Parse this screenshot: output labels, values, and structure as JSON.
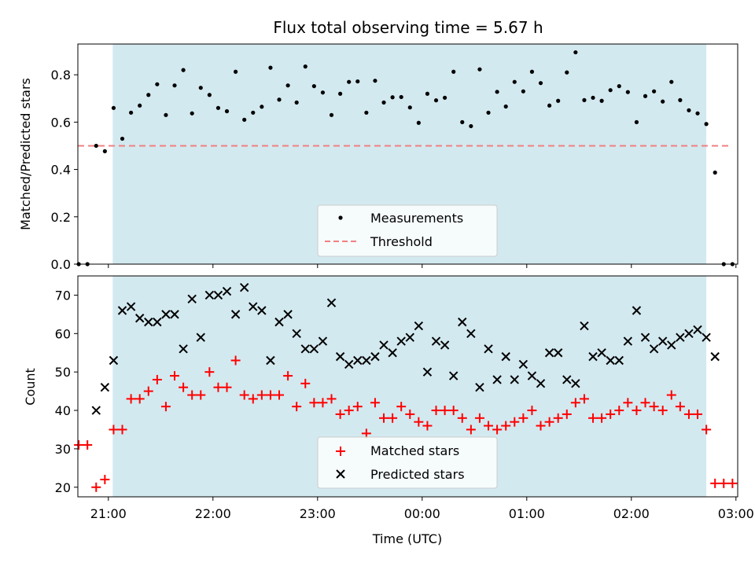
{
  "chart_data": [
    {
      "panel": "top",
      "type": "scatter",
      "title": "Flux total observing time = 5.67 h",
      "ylabel": "Matched/Predicted stars",
      "xlabel": "",
      "ylim": [
        0,
        0.93
      ],
      "yticks": [
        "0.0",
        "0.2",
        "0.4",
        "0.6",
        "0.8"
      ],
      "xlim": [
        -17.5,
        361
      ],
      "xticks": [
        0,
        60,
        120,
        180,
        240,
        300,
        360
      ],
      "shaded_span": [
        2.5,
        343
      ],
      "shade_color": "#d3e9f0",
      "threshold": 0.5,
      "threshold_range": [
        -17.5,
        357
      ],
      "legend": {
        "position": "lower center",
        "entries": [
          "Measurements",
          "Threshold"
        ]
      },
      "series": [
        {
          "name": "Measurements",
          "color": "#000000",
          "marker": "dot",
          "points": [
            [
              -17,
              0
            ],
            [
              -12,
              0
            ],
            [
              -7,
              0.5
            ],
            [
              -2,
              0.477
            ],
            [
              3,
              0.66
            ],
            [
              8,
              0.53
            ],
            [
              13,
              0.64
            ],
            [
              18,
              0.67
            ],
            [
              23,
              0.715
            ],
            [
              28,
              0.76
            ],
            [
              33,
              0.63
            ],
            [
              38,
              0.755
            ],
            [
              43,
              0.82
            ],
            [
              48,
              0.637
            ],
            [
              53,
              0.745
            ],
            [
              58,
              0.715
            ],
            [
              63,
              0.66
            ],
            [
              68,
              0.646
            ],
            [
              73,
              0.813
            ],
            [
              78,
              0.61
            ],
            [
              83,
              0.64
            ],
            [
              88,
              0.665
            ],
            [
              93,
              0.83
            ],
            [
              98,
              0.695
            ],
            [
              103,
              0.755
            ],
            [
              108,
              0.683
            ],
            [
              113,
              0.835
            ],
            [
              118,
              0.752
            ],
            [
              123,
              0.725
            ],
            [
              128,
              0.63
            ],
            [
              133,
              0.72
            ],
            [
              138,
              0.77
            ],
            [
              143,
              0.772
            ],
            [
              148,
              0.64
            ],
            [
              153,
              0.775
            ],
            [
              158,
              0.683
            ],
            [
              163,
              0.705
            ],
            [
              168,
              0.706
            ],
            [
              173,
              0.662
            ],
            [
              178,
              0.597
            ],
            [
              183,
              0.72
            ],
            [
              188,
              0.692
            ],
            [
              193,
              0.703
            ],
            [
              198,
              0.813
            ],
            [
              203,
              0.6
            ],
            [
              208,
              0.583
            ],
            [
              213,
              0.823
            ],
            [
              218,
              0.64
            ],
            [
              223,
              0.728
            ],
            [
              228,
              0.666
            ],
            [
              233,
              0.77
            ],
            [
              238,
              0.73
            ],
            [
              243,
              0.813
            ],
            [
              248,
              0.765
            ],
            [
              253,
              0.67
            ],
            [
              258,
              0.69
            ],
            [
              263,
              0.81
            ],
            [
              268,
              0.895
            ],
            [
              273,
              0.693
            ],
            [
              278,
              0.703
            ],
            [
              283,
              0.69
            ],
            [
              288,
              0.735
            ],
            [
              293,
              0.752
            ],
            [
              298,
              0.727
            ],
            [
              303,
              0.6
            ],
            [
              308,
              0.71
            ],
            [
              313,
              0.73
            ],
            [
              318,
              0.687
            ],
            [
              323,
              0.77
            ],
            [
              328,
              0.693
            ],
            [
              333,
              0.65
            ],
            [
              338,
              0.637
            ],
            [
              343,
              0.592
            ],
            [
              348,
              0.387
            ],
            [
              353,
              0
            ],
            [
              358,
              0
            ]
          ]
        },
        {
          "name": "Threshold",
          "color": "#f08080",
          "style": "dashed"
        }
      ]
    },
    {
      "panel": "bottom",
      "type": "scatter",
      "xlabel": "Time (UTC)",
      "ylabel": "Count",
      "ylim": [
        17.5,
        75
      ],
      "yticks": [
        "20",
        "30",
        "40",
        "50",
        "60",
        "70"
      ],
      "xlim": [
        -17.5,
        361
      ],
      "xtick_labels": [
        "21:00",
        "22:00",
        "23:00",
        "00:00",
        "01:00",
        "02:00",
        "03:00"
      ],
      "shaded_span": [
        2.5,
        343
      ],
      "shade_color": "#d3e9f0",
      "legend": {
        "position": "lower center",
        "entries": [
          "Matched stars",
          "Predicted stars"
        ]
      },
      "series": [
        {
          "name": "Matched stars",
          "color": "#ff0000",
          "marker": "plus",
          "points": [
            [
              -17,
              31
            ],
            [
              -12,
              31
            ],
            [
              -7,
              20
            ],
            [
              -2,
              22
            ],
            [
              3,
              35
            ],
            [
              8,
              35
            ],
            [
              13,
              43
            ],
            [
              18,
              43
            ],
            [
              23,
              45
            ],
            [
              28,
              48
            ],
            [
              33,
              41
            ],
            [
              38,
              49
            ],
            [
              43,
              46
            ],
            [
              48,
              44
            ],
            [
              53,
              44
            ],
            [
              58,
              50
            ],
            [
              63,
              46
            ],
            [
              68,
              46
            ],
            [
              73,
              53
            ],
            [
              78,
              44
            ],
            [
              83,
              43
            ],
            [
              88,
              44
            ],
            [
              93,
              44
            ],
            [
              98,
              44
            ],
            [
              103,
              49
            ],
            [
              108,
              41
            ],
            [
              113,
              47
            ],
            [
              118,
              42
            ],
            [
              123,
              42
            ],
            [
              128,
              43
            ],
            [
              133,
              39
            ],
            [
              138,
              40
            ],
            [
              143,
              41
            ],
            [
              148,
              34
            ],
            [
              153,
              42
            ],
            [
              158,
              38
            ],
            [
              163,
              38
            ],
            [
              168,
              41
            ],
            [
              173,
              39
            ],
            [
              178,
              37
            ],
            [
              183,
              36
            ],
            [
              188,
              40
            ],
            [
              193,
              40
            ],
            [
              198,
              40
            ],
            [
              203,
              38
            ],
            [
              208,
              35
            ],
            [
              213,
              38
            ],
            [
              218,
              36
            ],
            [
              223,
              35
            ],
            [
              228,
              36
            ],
            [
              233,
              37
            ],
            [
              238,
              38
            ],
            [
              243,
              40
            ],
            [
              248,
              36
            ],
            [
              253,
              37
            ],
            [
              258,
              38
            ],
            [
              263,
              39
            ],
            [
              268,
              42
            ],
            [
              273,
              43
            ],
            [
              278,
              38
            ],
            [
              283,
              38
            ],
            [
              288,
              39
            ],
            [
              293,
              40
            ],
            [
              298,
              42
            ],
            [
              303,
              40
            ],
            [
              308,
              42
            ],
            [
              313,
              41
            ],
            [
              318,
              40
            ],
            [
              323,
              44
            ],
            [
              328,
              41
            ],
            [
              333,
              39
            ],
            [
              338,
              39
            ],
            [
              343,
              35
            ],
            [
              348,
              21
            ],
            [
              353,
              21
            ],
            [
              358,
              21
            ]
          ]
        },
        {
          "name": "Predicted stars",
          "color": "#000000",
          "marker": "x",
          "points": [
            [
              -2,
              46
            ],
            [
              -7,
              40
            ],
            [
              3,
              53
            ],
            [
              8,
              66
            ],
            [
              13,
              67
            ],
            [
              18,
              64
            ],
            [
              23,
              63
            ],
            [
              28,
              63
            ],
            [
              33,
              65
            ],
            [
              38,
              65
            ],
            [
              43,
              56
            ],
            [
              48,
              69
            ],
            [
              53,
              59
            ],
            [
              58,
              70
            ],
            [
              63,
              70
            ],
            [
              68,
              71
            ],
            [
              73,
              65
            ],
            [
              78,
              72
            ],
            [
              83,
              67
            ],
            [
              88,
              66
            ],
            [
              93,
              53
            ],
            [
              98,
              63
            ],
            [
              103,
              65
            ],
            [
              108,
              60
            ],
            [
              113,
              56
            ],
            [
              118,
              56
            ],
            [
              123,
              58
            ],
            [
              128,
              68
            ],
            [
              133,
              54
            ],
            [
              138,
              52
            ],
            [
              143,
              53
            ],
            [
              148,
              53
            ],
            [
              153,
              54
            ],
            [
              158,
              57
            ],
            [
              163,
              55
            ],
            [
              168,
              58
            ],
            [
              173,
              59
            ],
            [
              178,
              62
            ],
            [
              183,
              50
            ],
            [
              188,
              58
            ],
            [
              193,
              57
            ],
            [
              198,
              49
            ],
            [
              203,
              63
            ],
            [
              208,
              60
            ],
            [
              213,
              46
            ],
            [
              218,
              56
            ],
            [
              223,
              48
            ],
            [
              228,
              54
            ],
            [
              233,
              48
            ],
            [
              238,
              52
            ],
            [
              243,
              49
            ],
            [
              248,
              47
            ],
            [
              253,
              55
            ],
            [
              258,
              55
            ],
            [
              263,
              48
            ],
            [
              268,
              47
            ],
            [
              273,
              62
            ],
            [
              278,
              54
            ],
            [
              283,
              55
            ],
            [
              288,
              53
            ],
            [
              293,
              53
            ],
            [
              298,
              58
            ],
            [
              303,
              66
            ],
            [
              308,
              59
            ],
            [
              313,
              56
            ],
            [
              318,
              58
            ],
            [
              323,
              57
            ],
            [
              328,
              59
            ],
            [
              333,
              60
            ],
            [
              338,
              61
            ],
            [
              343,
              59
            ],
            [
              348,
              54
            ]
          ]
        }
      ]
    }
  ]
}
